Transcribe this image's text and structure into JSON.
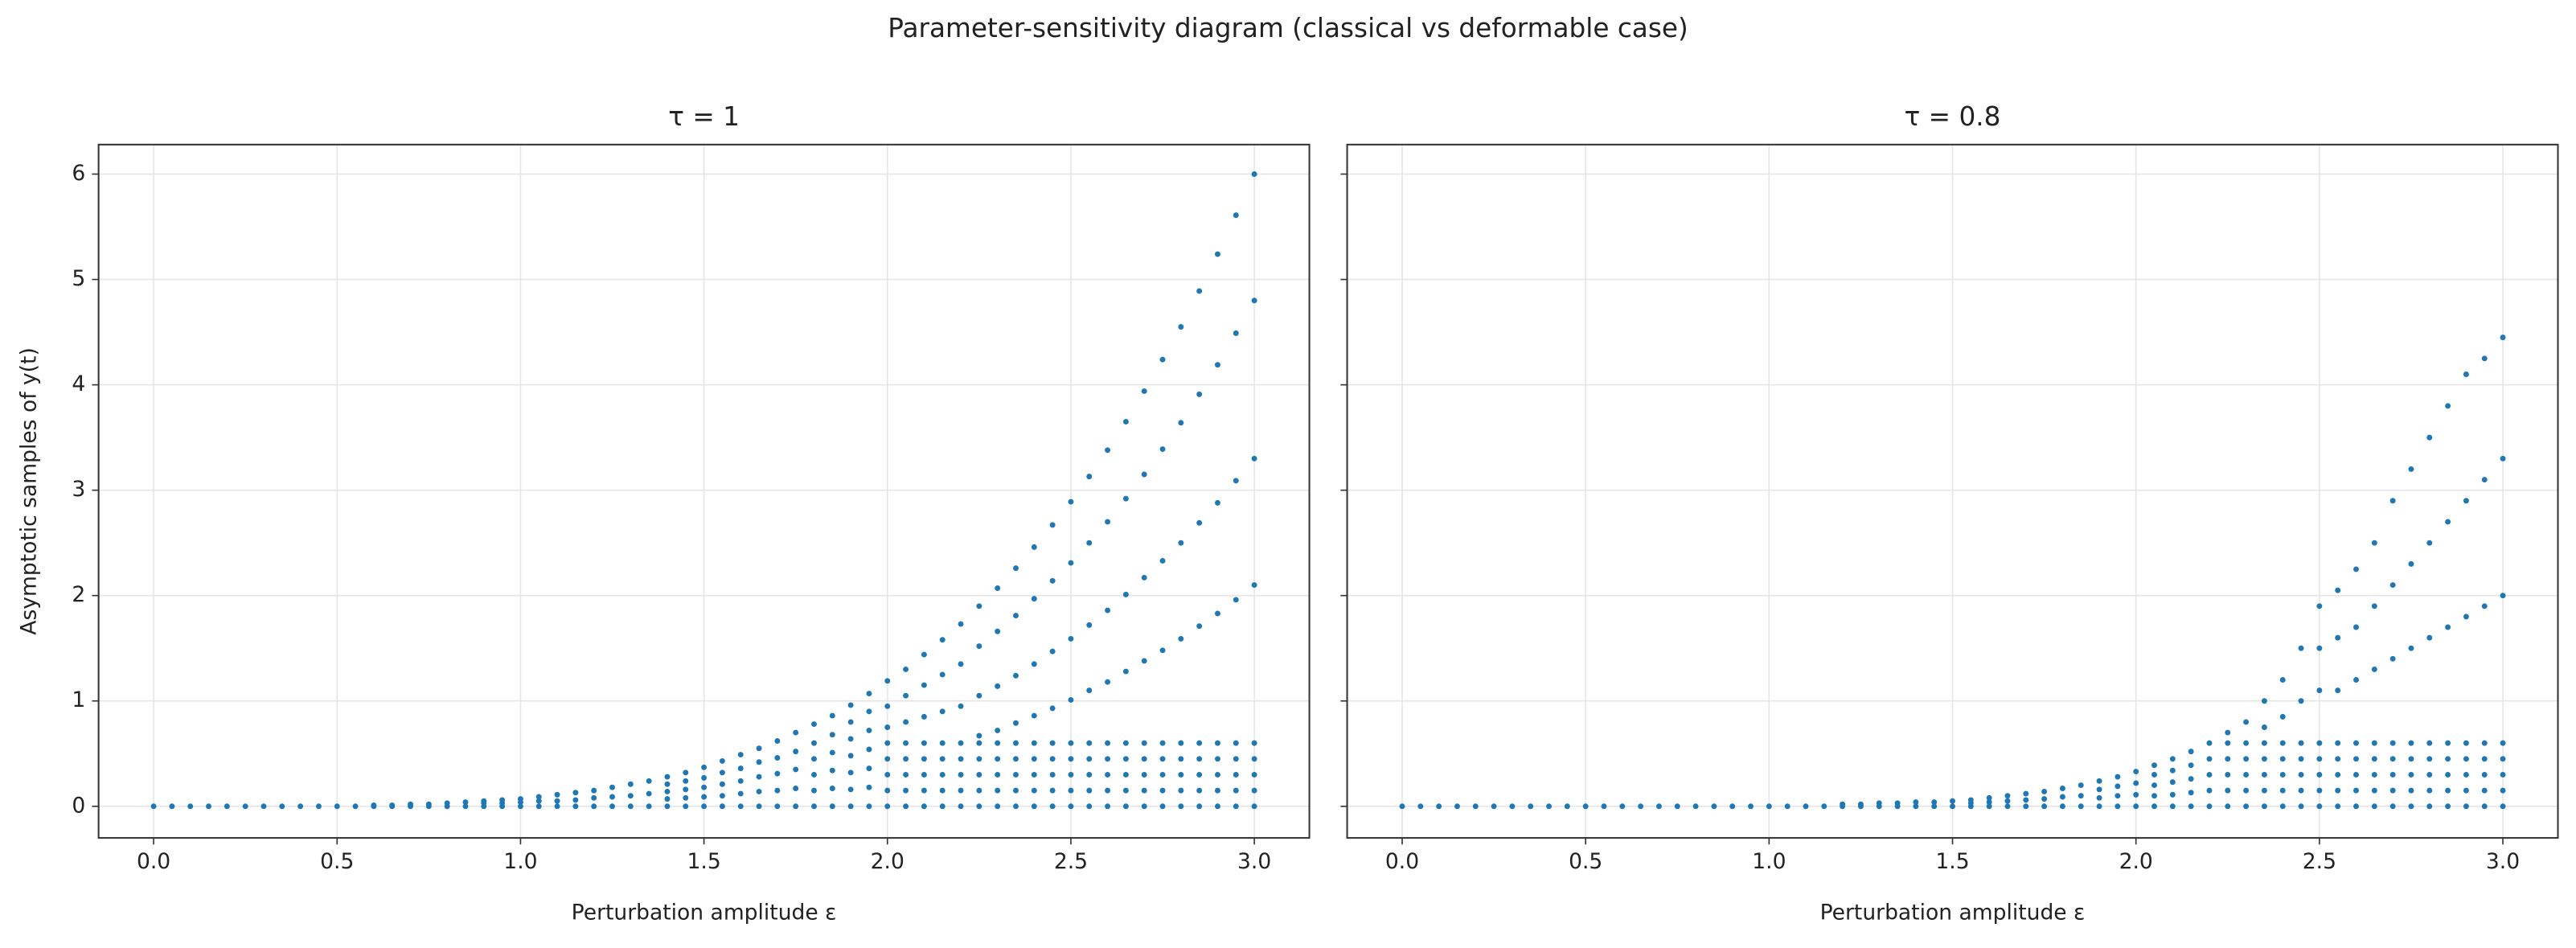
{
  "title": "Parameter-sensitivity diagram (classical vs deformable case)",
  "chart_data": [
    {
      "type": "scatter",
      "title": "τ = 1",
      "x_label": "Perturbation amplitude ε",
      "y_label": "Asymptotic samples of y(t)",
      "xlim": [
        -0.15,
        3.15
      ],
      "ylim": [
        -0.3,
        6.28
      ],
      "xticks": [
        {
          "value": 0,
          "label": "0.0"
        },
        0.5,
        {
          "value": 1,
          "label": "1.0"
        },
        1.5,
        {
          "value": 2,
          "label": "2.0"
        },
        2.5,
        {
          "value": 3,
          "label": "3.0"
        }
      ],
      "yticks": [
        0,
        1,
        2,
        3,
        4,
        5,
        6
      ],
      "grid": true,
      "x": [
        0,
        0.05,
        0.1,
        0.15,
        0.2,
        0.25,
        0.3,
        0.35,
        0.4,
        0.45,
        0.5,
        0.55,
        0.6,
        0.65,
        0.7,
        0.75,
        0.8,
        0.85,
        0.9,
        0.95,
        1,
        1.05,
        1.1,
        1.15,
        1.2,
        1.25,
        1.3,
        1.35,
        1.4,
        1.45,
        1.5,
        1.55,
        1.6,
        1.65,
        1.7,
        1.75,
        1.8,
        1.85,
        1.9,
        1.95,
        2,
        2.05,
        2.1,
        2.15,
        2.2,
        2.25,
        2.3,
        2.35,
        2.4,
        2.45,
        2.5,
        2.55,
        2.6,
        2.65,
        2.7,
        2.75,
        2.8,
        2.85,
        2.9,
        2.95,
        3
      ],
      "series": [
        {
          "color": "#1f77b4",
          "values": [
            [
              0
            ],
            [
              0
            ],
            [
              0
            ],
            [
              0
            ],
            [
              0
            ],
            [
              0
            ],
            [
              0
            ],
            [
              0
            ],
            [
              0
            ],
            [
              0
            ],
            [
              0
            ],
            [
              0
            ],
            [
              0,
              0.01
            ],
            [
              0,
              0.01
            ],
            [
              0,
              0.02
            ],
            [
              0,
              0.02
            ],
            [
              0,
              0.03
            ],
            [
              0,
              0.04
            ],
            [
              0,
              0.03,
              0.05
            ],
            [
              0,
              0.03,
              0.06
            ],
            [
              0,
              0.04,
              0.07
            ],
            [
              0,
              0.05,
              0.09
            ],
            [
              0,
              0.05,
              0.11
            ],
            [
              0,
              0.06,
              0.13
            ],
            [
              0,
              0.08,
              0.15
            ],
            [
              0,
              0.09,
              0.18
            ],
            [
              0,
              0.1,
              0.21
            ],
            [
              0,
              0.12,
              0.24
            ],
            [
              0,
              0.07,
              0.14,
              0.21,
              0.28
            ],
            [
              0,
              0.08,
              0.16,
              0.24,
              0.32
            ],
            [
              0,
              0.09,
              0.18,
              0.27,
              0.37
            ],
            [
              0,
              0.1,
              0.21,
              0.32,
              0.43
            ],
            [
              0,
              0.12,
              0.24,
              0.36,
              0.49
            ],
            [
              0,
              0.14,
              0.28,
              0.42,
              0.55
            ],
            [
              0,
              0.15,
              0.31,
              0.46,
              0.62
            ],
            [
              0,
              0.17,
              0.35,
              0.52,
              0.7
            ],
            [
              0,
              0.15,
              0.3,
              0.45,
              0.6,
              0.78
            ],
            [
              0,
              0.17,
              0.34,
              0.51,
              0.68,
              0.86
            ],
            [
              0,
              0.16,
              0.32,
              0.48,
              0.64,
              0.8,
              0.96
            ],
            [
              0,
              0.18,
              0.36,
              0.54,
              0.72,
              0.9,
              1.07
            ],
            [
              0,
              0.15,
              0.3,
              0.45,
              0.6,
              0.75,
              0.95,
              1.19
            ],
            [
              0,
              0.15,
              0.3,
              0.45,
              0.6,
              0.8,
              1.05,
              1.3
            ],
            [
              0,
              0.15,
              0.3,
              0.45,
              0.6,
              0.85,
              1.15,
              1.44
            ],
            [
              0,
              0.15,
              0.3,
              0.45,
              0.6,
              0.9,
              1.25,
              1.58
            ],
            [
              0,
              0.15,
              0.3,
              0.45,
              0.6,
              0.95,
              1.35,
              1.73
            ],
            [
              0,
              0.15,
              0.3,
              0.45,
              0.6,
              0.67,
              1.05,
              1.52,
              1.9
            ],
            [
              0,
              0.15,
              0.3,
              0.45,
              0.6,
              0.72,
              1.14,
              1.66,
              2.07
            ],
            [
              0,
              0.15,
              0.3,
              0.45,
              0.6,
              0.79,
              1.24,
              1.81,
              2.26
            ],
            [
              0,
              0.15,
              0.3,
              0.45,
              0.6,
              0.86,
              1.35,
              1.97,
              2.46
            ],
            [
              0,
              0.15,
              0.3,
              0.45,
              0.6,
              0.93,
              1.47,
              2.14,
              2.67
            ],
            [
              0,
              0.15,
              0.3,
              0.45,
              0.6,
              1.01,
              1.59,
              2.31,
              2.89
            ],
            [
              0,
              0.15,
              0.3,
              0.45,
              0.6,
              1.1,
              1.72,
              2.5,
              3.13
            ],
            [
              0,
              0.15,
              0.3,
              0.45,
              0.6,
              1.18,
              1.86,
              2.7,
              3.38
            ],
            [
              0,
              0.15,
              0.3,
              0.45,
              0.6,
              1.28,
              2.01,
              2.92,
              3.65
            ],
            [
              0,
              0.15,
              0.3,
              0.45,
              0.6,
              1.38,
              2.17,
              3.15,
              3.94
            ],
            [
              0,
              0.15,
              0.3,
              0.45,
              0.6,
              1.48,
              2.33,
              3.39,
              4.24
            ],
            [
              0,
              0.15,
              0.3,
              0.45,
              0.6,
              1.59,
              2.5,
              3.64,
              4.55
            ],
            [
              0,
              0.15,
              0.3,
              0.45,
              0.6,
              1.71,
              2.69,
              3.91,
              4.89
            ],
            [
              0,
              0.15,
              0.3,
              0.45,
              0.6,
              1.83,
              2.88,
              4.19,
              5.24
            ],
            [
              0,
              0.15,
              0.3,
              0.45,
              0.6,
              1.96,
              3.09,
              4.49,
              5.61
            ],
            [
              0,
              0.15,
              0.3,
              0.45,
              0.6,
              2.1,
              3.3,
              4.8,
              6
            ]
          ]
        }
      ]
    },
    {
      "type": "scatter",
      "title": "τ = 0.8",
      "x_label": "Perturbation amplitude ε",
      "xlim": [
        -0.15,
        3.15
      ],
      "ylim": [
        -0.3,
        6.28
      ],
      "xticks": [
        {
          "value": 0,
          "label": "0.0"
        },
        0.5,
        {
          "value": 1,
          "label": "1.0"
        },
        1.5,
        {
          "value": 2,
          "label": "2.0"
        },
        2.5,
        {
          "value": 3,
          "label": "3.0"
        }
      ],
      "yticks": [
        0,
        1,
        2,
        3,
        4,
        5,
        6
      ],
      "grid": true,
      "x": [
        0,
        0.05,
        0.1,
        0.15,
        0.2,
        0.25,
        0.3,
        0.35,
        0.4,
        0.45,
        0.5,
        0.55,
        0.6,
        0.65,
        0.7,
        0.75,
        0.8,
        0.85,
        0.9,
        0.95,
        1,
        1.05,
        1.1,
        1.15,
        1.2,
        1.25,
        1.3,
        1.35,
        1.4,
        1.45,
        1.5,
        1.55,
        1.6,
        1.65,
        1.7,
        1.75,
        1.8,
        1.85,
        1.9,
        1.95,
        2,
        2.05,
        2.1,
        2.15,
        2.2,
        2.25,
        2.3,
        2.35,
        2.4,
        2.45,
        2.5,
        2.55,
        2.6,
        2.65,
        2.7,
        2.75,
        2.8,
        2.85,
        2.9,
        2.95,
        3
      ],
      "series": [
        {
          "color": "#1f77b4",
          "values": [
            [
              0
            ],
            [
              0
            ],
            [
              0
            ],
            [
              0
            ],
            [
              0
            ],
            [
              0
            ],
            [
              0
            ],
            [
              0
            ],
            [
              0
            ],
            [
              0
            ],
            [
              0
            ],
            [
              0
            ],
            [
              0
            ],
            [
              0
            ],
            [
              0
            ],
            [
              0
            ],
            [
              0
            ],
            [
              0
            ],
            [
              0
            ],
            [
              0
            ],
            [
              0
            ],
            [
              0
            ],
            [
              0
            ],
            [
              0
            ],
            [
              0,
              0.02
            ],
            [
              0,
              0.02
            ],
            [
              0,
              0.03
            ],
            [
              0,
              0.03
            ],
            [
              0,
              0.04
            ],
            [
              0,
              0.04
            ],
            [
              0,
              0.05
            ],
            [
              0,
              0.03,
              0.06
            ],
            [
              0,
              0.04,
              0.08
            ],
            [
              0,
              0.05,
              0.1
            ],
            [
              0,
              0.06,
              0.12
            ],
            [
              0,
              0.07,
              0.14
            ],
            [
              0,
              0.09,
              0.17
            ],
            [
              0,
              0.1,
              0.2
            ],
            [
              0,
              0.08,
              0.16,
              0.24
            ],
            [
              0,
              0.1,
              0.19,
              0.28
            ],
            [
              0,
              0.11,
              0.22,
              0.33
            ],
            [
              0,
              0.1,
              0.2,
              0.3,
              0.39
            ],
            [
              0,
              0.11,
              0.23,
              0.34,
              0.45
            ],
            [
              0,
              0.13,
              0.26,
              0.39,
              0.52
            ],
            [
              0,
              0.15,
              0.3,
              0.45,
              0.6
            ],
            [
              0,
              0.15,
              0.3,
              0.45,
              0.6,
              0.7
            ],
            [
              0,
              0.15,
              0.3,
              0.45,
              0.6,
              0.8
            ],
            [
              0,
              0.15,
              0.3,
              0.45,
              0.6,
              0.75,
              1
            ],
            [
              0,
              0.15,
              0.3,
              0.45,
              0.6,
              0.85,
              1.2
            ],
            [
              0,
              0.15,
              0.3,
              0.45,
              0.6,
              1,
              1.5
            ],
            [
              0,
              0.15,
              0.3,
              0.45,
              0.6,
              1.1,
              1.5,
              1.9
            ],
            [
              0,
              0.15,
              0.3,
              0.45,
              0.6,
              1.1,
              1.6,
              2.05
            ],
            [
              0,
              0.15,
              0.3,
              0.45,
              0.6,
              1.2,
              1.7,
              2.25
            ],
            [
              0,
              0.15,
              0.3,
              0.45,
              0.6,
              1.3,
              1.9,
              2.5
            ],
            [
              0,
              0.15,
              0.3,
              0.45,
              0.6,
              1.4,
              2.1,
              2.9
            ],
            [
              0,
              0.15,
              0.3,
              0.45,
              0.6,
              1.5,
              2.3,
              3.2
            ],
            [
              0,
              0.15,
              0.3,
              0.45,
              0.6,
              1.6,
              2.5,
              3.5
            ],
            [
              0,
              0.15,
              0.3,
              0.45,
              0.6,
              1.7,
              2.7,
              3.8
            ],
            [
              0,
              0.15,
              0.3,
              0.45,
              0.6,
              1.8,
              2.9,
              4.1
            ],
            [
              0,
              0.15,
              0.3,
              0.45,
              0.6,
              1.9,
              3.1,
              4.25
            ],
            [
              0,
              0.15,
              0.3,
              0.45,
              0.6,
              2,
              3.3,
              4.45
            ]
          ]
        }
      ]
    }
  ]
}
